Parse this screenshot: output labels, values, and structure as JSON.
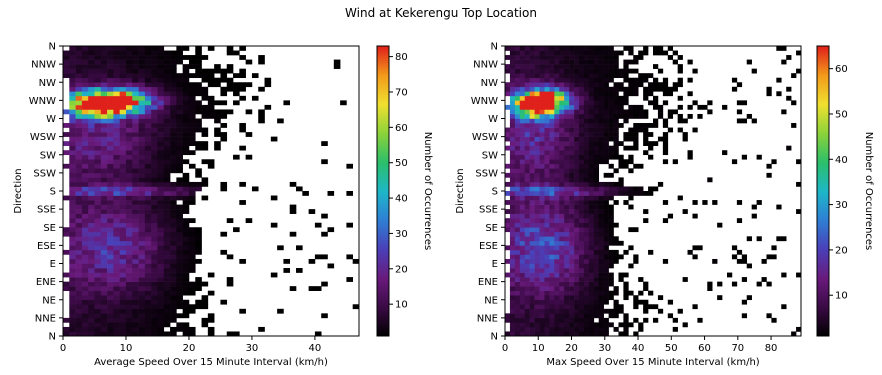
{
  "figure": {
    "title": "Wind at Kekerengu Top Location"
  },
  "chart_data": [
    {
      "type": "heatmap",
      "xlabel": "Average Speed Over 15 Minute Interval (km/h)",
      "ylabel": "Direction",
      "xlim": [
        0,
        47
      ],
      "x_ticks": [
        0,
        10,
        20,
        30,
        40
      ],
      "y_categories": [
        "N",
        "NNE",
        "NE",
        "ENE",
        "E",
        "ESE",
        "SE",
        "SSE",
        "S",
        "SSW",
        "SW",
        "WSW",
        "W",
        "WNW",
        "NW",
        "NNW",
        "N"
      ],
      "colorbar": {
        "label": "Number of Occurrences",
        "range": [
          1,
          83
        ],
        "ticks": [
          10,
          20,
          30,
          40,
          50,
          60,
          70,
          80
        ]
      },
      "colormap": [
        "#000000",
        "#3a0a44",
        "#6a1a7c",
        "#4a3fb8",
        "#2f7fd4",
        "#1eb7c8",
        "#2bbf6a",
        "#8cd23a",
        "#f0e030",
        "#f29a1a",
        "#e0201a"
      ],
      "density_peaks": [
        {
          "direction_deg": 292,
          "speed": 8,
          "count": 83,
          "spread_speed": 4.0,
          "spread_dir": 10
        },
        {
          "direction_deg": 285,
          "speed": 5,
          "count": 60,
          "spread_speed": 3.0,
          "spread_dir": 9
        },
        {
          "direction_deg": 180,
          "speed": 10,
          "count": 16,
          "spread_speed": 9.0,
          "spread_dir": 5
        },
        {
          "direction_deg": 110,
          "speed": 8,
          "count": 20,
          "spread_speed": 6.0,
          "spread_dir": 40
        },
        {
          "direction_deg": 250,
          "speed": 6,
          "count": 14,
          "spread_speed": 6.0,
          "spread_dir": 40
        }
      ],
      "direction_extent": {
        "westerly_max_speed": 46,
        "easterly_max_speed": 22,
        "southerly_max_speed": 21,
        "northerly_max_speed": 37
      }
    },
    {
      "type": "heatmap",
      "xlabel": "Max Speed Over 15 Minute Interval (km/h)",
      "ylabel": "Direction",
      "xlim": [
        0,
        89
      ],
      "x_ticks": [
        0,
        10,
        20,
        30,
        40,
        50,
        60,
        70,
        80
      ],
      "y_categories": [
        "N",
        "NNE",
        "NE",
        "ENE",
        "E",
        "ESE",
        "SE",
        "SSE",
        "S",
        "SSW",
        "SW",
        "WSW",
        "W",
        "WNW",
        "NW",
        "NNW",
        "N"
      ],
      "colorbar": {
        "label": "Number of Occurrences",
        "range": [
          1,
          65
        ],
        "ticks": [
          10,
          20,
          30,
          40,
          50,
          60
        ]
      },
      "colormap": [
        "#000000",
        "#3a0a44",
        "#6a1a7c",
        "#4a3fb8",
        "#2f7fd4",
        "#1eb7c8",
        "#2bbf6a",
        "#8cd23a",
        "#f0e030",
        "#f29a1a",
        "#e0201a"
      ],
      "density_peaks": [
        {
          "direction_deg": 292,
          "speed": 12,
          "count": 65,
          "spread_speed": 5.0,
          "spread_dir": 10
        },
        {
          "direction_deg": 285,
          "speed": 8,
          "count": 45,
          "spread_speed": 4.0,
          "spread_dir": 9
        },
        {
          "direction_deg": 180,
          "speed": 14,
          "count": 14,
          "spread_speed": 14.0,
          "spread_dir": 5
        },
        {
          "direction_deg": 110,
          "speed": 12,
          "count": 18,
          "spread_speed": 9.0,
          "spread_dir": 40
        },
        {
          "direction_deg": 250,
          "speed": 9,
          "count": 12,
          "spread_speed": 8.0,
          "spread_dir": 40
        }
      ],
      "direction_extent": {
        "westerly_max_speed": 84,
        "easterly_max_speed": 48,
        "southerly_max_speed": 45,
        "northerly_max_speed": 70
      }
    }
  ]
}
